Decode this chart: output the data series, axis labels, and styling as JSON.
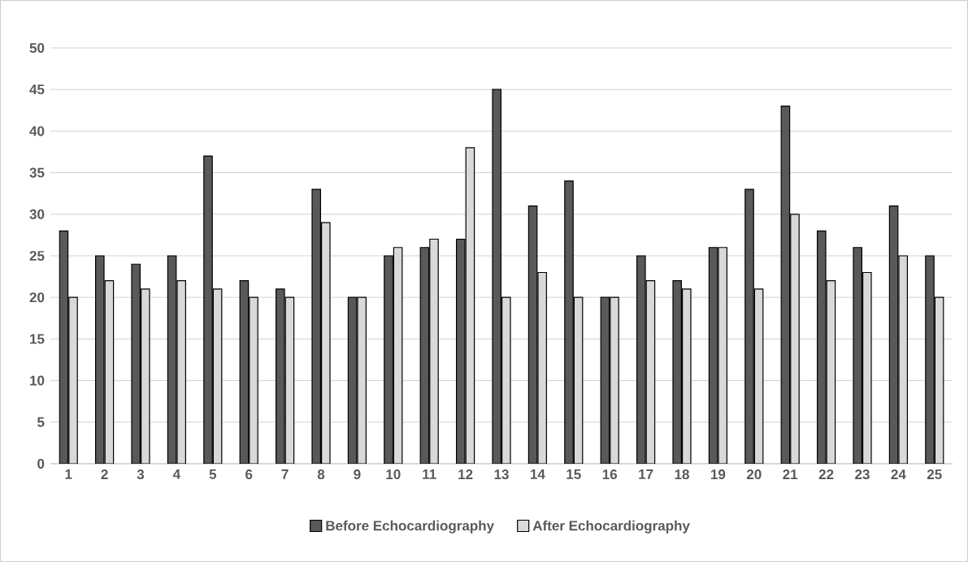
{
  "chart_data": {
    "type": "bar",
    "categories": [
      "1",
      "2",
      "3",
      "4",
      "5",
      "6",
      "7",
      "8",
      "9",
      "10",
      "11",
      "12",
      "13",
      "14",
      "15",
      "16",
      "17",
      "18",
      "19",
      "20",
      "21",
      "22",
      "23",
      "24",
      "25"
    ],
    "series": [
      {
        "name": "Before Echocardiography",
        "color": "#595959",
        "values": [
          28,
          25,
          24,
          25,
          37,
          22,
          21,
          33,
          20,
          25,
          26,
          27,
          45,
          31,
          34,
          20,
          25,
          22,
          26,
          33,
          43,
          28,
          26,
          31,
          25
        ]
      },
      {
        "name": "After Echocardiography",
        "color": "#d9d9d9",
        "values": [
          20,
          22,
          21,
          22,
          21,
          20,
          20,
          29,
          20,
          26,
          27,
          38,
          20,
          23,
          20,
          20,
          22,
          21,
          26,
          21,
          30,
          22,
          23,
          25,
          20
        ]
      }
    ],
    "ylim": [
      0,
      50
    ],
    "yticks": [
      0,
      5,
      10,
      15,
      20,
      25,
      30,
      35,
      40,
      45,
      50
    ],
    "grid": "y",
    "legend": "bottom"
  }
}
